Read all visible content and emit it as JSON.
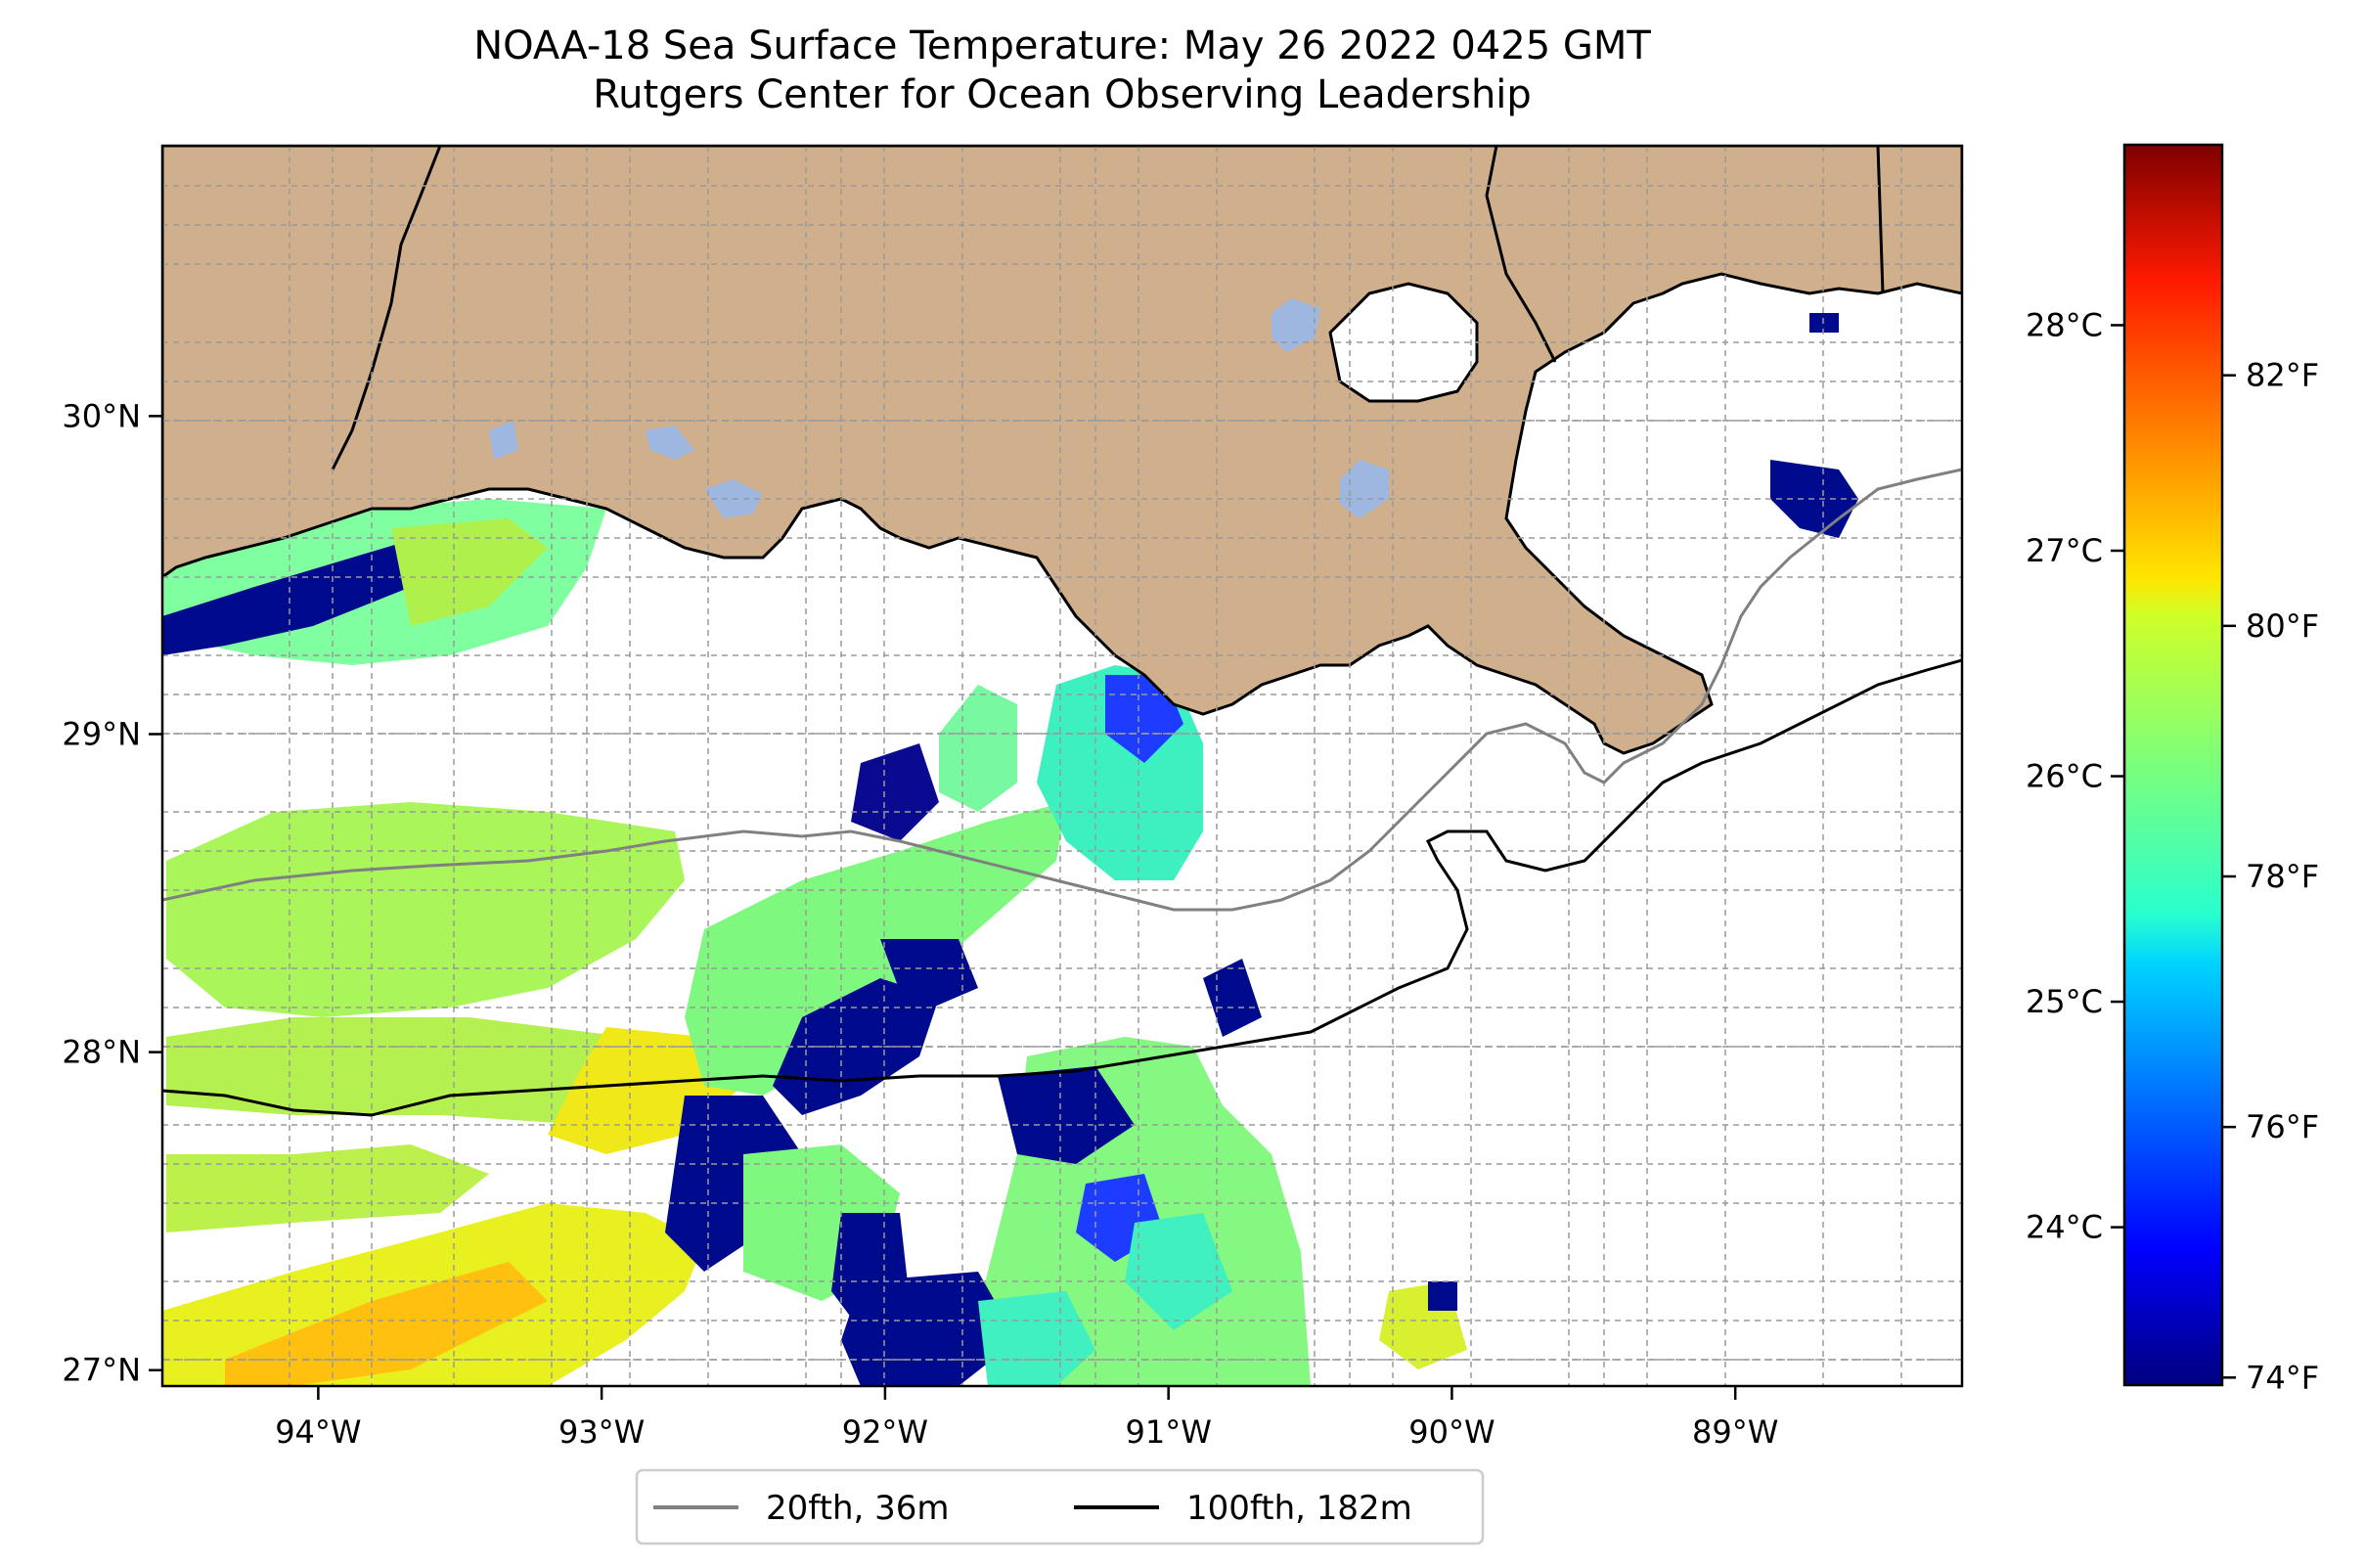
{
  "title": {
    "line1": "NOAA-18 Sea Surface Temperature: May 26 2022 0425 GMT",
    "line2": "Rutgers Center for Ocean Observing Leadership"
  },
  "map": {
    "lon_range": [
      -94.55,
      -88.2
    ],
    "lat_range": [
      26.95,
      30.85
    ],
    "lon_ticks": [
      {
        "value": -94,
        "label": "94°W"
      },
      {
        "value": -93,
        "label": "93°W"
      },
      {
        "value": -92,
        "label": "92°W"
      },
      {
        "value": -91,
        "label": "91°W"
      },
      {
        "value": -90,
        "label": "90°W"
      },
      {
        "value": -89,
        "label": "89°W"
      }
    ],
    "lat_ticks": [
      {
        "value": 27,
        "label": "27°N"
      },
      {
        "value": 28,
        "label": "28°N"
      },
      {
        "value": 29,
        "label": "29°N"
      },
      {
        "value": 30,
        "label": "30°N"
      }
    ],
    "gridlines": "dashed",
    "land_color": "#d0b08c",
    "lake_color": "#9db7e0"
  },
  "colorbar": {
    "colormap": "jet",
    "range_celsius": [
      23.3,
      28.8
    ],
    "celsius_ticks": [
      {
        "value": 24,
        "label": "24°C"
      },
      {
        "value": 25,
        "label": "25°C"
      },
      {
        "value": 26,
        "label": "26°C"
      },
      {
        "value": 27,
        "label": "27°C"
      },
      {
        "value": 28,
        "label": "28°C"
      }
    ],
    "fahrenheit_ticks": [
      {
        "value": 74,
        "label": "74°F"
      },
      {
        "value": 76,
        "label": "76°F"
      },
      {
        "value": 78,
        "label": "78°F"
      },
      {
        "value": 80,
        "label": "80°F"
      },
      {
        "value": 82,
        "label": "82°F"
      }
    ]
  },
  "legend": {
    "items": [
      {
        "label": "20fth, 36m",
        "color": "#808080"
      },
      {
        "label": "100fth, 182m",
        "color": "#000000"
      }
    ]
  }
}
